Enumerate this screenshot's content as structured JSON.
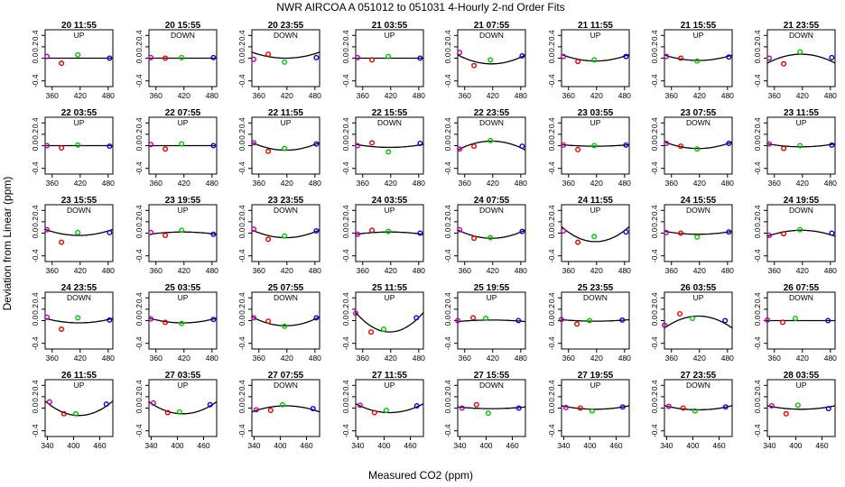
{
  "title": "NWR   AIRCOA A    051012 to 051031   4-Hourly 2-nd Order Fits",
  "xlabel": "Measured CO2 (ppm)",
  "ylabel": "Deviation from Linear (ppm)",
  "colors": {
    "low": "#e00000",
    "mid": "#00c000",
    "high": "#0000e0",
    "start": "#b000b0",
    "line": "#000000"
  },
  "chart_data": {
    "type": "scatter",
    "title": "NWR   AIRCOA A    051012 to 051031   4-Hourly 2-nd Order Fits",
    "xlabel": "Measured CO2 (ppm)",
    "ylabel": "Deviation from Linear (ppm)",
    "ylim": [
      -0.5,
      0.5
    ],
    "yticks": [
      "-0.4",
      "0.0",
      "0.2",
      "0.4"
    ],
    "rows": [
      {
        "xlim": [
          345,
          490
        ],
        "xticks": [
          "360",
          "420",
          "480"
        ]
      },
      {
        "xlim": [
          345,
          490
        ],
        "xticks": [
          "360",
          "420",
          "480"
        ]
      },
      {
        "xlim": [
          345,
          490
        ],
        "xticks": [
          "360",
          "420",
          "480"
        ]
      },
      {
        "xlim": [
          345,
          490
        ],
        "xticks": [
          "360",
          "420",
          "480"
        ]
      },
      {
        "xlim": [
          335,
          490
        ],
        "xticks": [
          "340",
          "400",
          "460"
        ]
      }
    ],
    "panels": [
      {
        "time": "20 11:55",
        "dir": "UP",
        "pts": [
          [
            349,
            0.03
          ],
          [
            380,
            -0.09
          ],
          [
            415,
            0.06
          ],
          [
            483,
            0.0
          ]
        ],
        "fit": [
          0,
          0,
          0
        ]
      },
      {
        "time": "20 15:55",
        "dir": "DOWN",
        "pts": [
          [
            349,
            0.01
          ],
          [
            380,
            0.0
          ],
          [
            415,
            0.01
          ],
          [
            483,
            0.01
          ]
        ],
        "fit": [
          0,
          0,
          0
        ]
      },
      {
        "time": "20 23:55",
        "dir": "DOWN",
        "pts": [
          [
            349,
            -0.02
          ],
          [
            380,
            0.07
          ],
          [
            415,
            -0.07
          ],
          [
            483,
            0.01
          ]
        ],
        "fit": [
          0.0,
          2e-05,
          0
        ]
      },
      {
        "time": "21 03:55",
        "dir": "UP",
        "pts": [
          [
            349,
            0.01
          ],
          [
            380,
            -0.03
          ],
          [
            415,
            0.03
          ],
          [
            483,
            0.0
          ]
        ],
        "fit": [
          0,
          0,
          0
        ]
      },
      {
        "time": "21 07:55",
        "dir": "DOWN",
        "pts": [
          [
            349,
            0.1
          ],
          [
            380,
            -0.13
          ],
          [
            415,
            -0.03
          ],
          [
            483,
            0.04
          ]
        ],
        "fit": [
          -0.1,
          3e-05,
          0
        ]
      },
      {
        "time": "21 11:55",
        "dir": "UP",
        "pts": [
          [
            349,
            0.03
          ],
          [
            380,
            -0.06
          ],
          [
            415,
            -0.03
          ],
          [
            483,
            0.03
          ]
        ],
        "fit": [
          -0.05,
          2.2e-05,
          0
        ]
      },
      {
        "time": "21 15:55",
        "dir": "UP",
        "pts": [
          [
            349,
            0.03
          ],
          [
            380,
            0.0
          ],
          [
            415,
            -0.05
          ],
          [
            483,
            0.02
          ]
        ],
        "fit": [
          -0.04,
          1.8e-05,
          0
        ]
      },
      {
        "time": "21 23:55",
        "dir": "DOWN",
        "pts": [
          [
            349,
            0.0
          ],
          [
            380,
            -0.1
          ],
          [
            415,
            0.11
          ],
          [
            483,
            0.01
          ]
        ],
        "fit": [
          0.07,
          -3e-05,
          0
        ]
      },
      {
        "time": "22 03:55",
        "dir": "UP",
        "pts": [
          [
            349,
            0.0
          ],
          [
            380,
            -0.04
          ],
          [
            415,
            0.01
          ],
          [
            483,
            -0.01
          ]
        ],
        "fit": [
          0,
          0,
          0
        ]
      },
      {
        "time": "22 07:55",
        "dir": "UP",
        "pts": [
          [
            349,
            0.02
          ],
          [
            380,
            -0.06
          ],
          [
            415,
            0.03
          ],
          [
            483,
            0.0
          ]
        ],
        "fit": [
          0,
          0,
          0
        ]
      },
      {
        "time": "22 11:55",
        "dir": "UP",
        "pts": [
          [
            349,
            0.05
          ],
          [
            380,
            -0.1
          ],
          [
            415,
            -0.05
          ],
          [
            483,
            0.03
          ]
        ],
        "fit": [
          -0.08,
          2.6e-05,
          0
        ]
      },
      {
        "time": "22 15:55",
        "dir": "DOWN",
        "pts": [
          [
            349,
            0.0
          ],
          [
            380,
            0.05
          ],
          [
            415,
            -0.11
          ],
          [
            483,
            0.04
          ]
        ],
        "fit": [
          -0.03,
          1e-05,
          0
        ]
      },
      {
        "time": "22 23:55",
        "dir": "DOWN",
        "pts": [
          [
            349,
            -0.06
          ],
          [
            380,
            -0.01
          ],
          [
            415,
            0.09
          ],
          [
            483,
            -0.01
          ]
        ],
        "fit": [
          0.08,
          -3e-05,
          0
        ]
      },
      {
        "time": "23 03:55",
        "dir": "UP",
        "pts": [
          [
            349,
            0.01
          ],
          [
            380,
            -0.07
          ],
          [
            415,
            0.0
          ],
          [
            483,
            0.01
          ]
        ],
        "fit": [
          -0.01,
          5e-06,
          0
        ]
      },
      {
        "time": "23 07:55",
        "dir": "DOWN",
        "pts": [
          [
            349,
            0.04
          ],
          [
            380,
            -0.01
          ],
          [
            415,
            -0.06
          ],
          [
            483,
            0.04
          ]
        ],
        "fit": [
          -0.05,
          2.2e-05,
          0
        ]
      },
      {
        "time": "23 11:55",
        "dir": "UP",
        "pts": [
          [
            349,
            0.03
          ],
          [
            380,
            -0.05
          ],
          [
            415,
            0.0
          ],
          [
            483,
            0.01
          ]
        ],
        "fit": [
          -0.02,
          1e-05,
          0
        ]
      },
      {
        "time": "23 15:55",
        "dir": "DOWN",
        "pts": [
          [
            349,
            0.06
          ],
          [
            380,
            -0.16
          ],
          [
            415,
            0.01
          ],
          [
            483,
            0.01
          ]
        ],
        "fit": [
          -0.04,
          2e-05,
          0
        ]
      },
      {
        "time": "23 19:55",
        "dir": "UP",
        "pts": [
          [
            349,
            0.01
          ],
          [
            380,
            -0.04
          ],
          [
            415,
            0.05
          ],
          [
            483,
            -0.02
          ]
        ],
        "fit": [
          0.02,
          -8e-06,
          0
        ]
      },
      {
        "time": "23 23:55",
        "dir": "DOWN",
        "pts": [
          [
            349,
            0.07
          ],
          [
            380,
            -0.11
          ],
          [
            415,
            -0.05
          ],
          [
            483,
            0.04
          ]
        ],
        "fit": [
          -0.08,
          2.6e-05,
          0
        ]
      },
      {
        "time": "24 03:55",
        "dir": "UP",
        "pts": [
          [
            349,
            -0.02
          ],
          [
            380,
            0.05
          ],
          [
            415,
            0.03
          ],
          [
            483,
            0.0
          ]
        ],
        "fit": [
          0.02,
          -8e-06,
          0
        ]
      },
      {
        "time": "24 07:55",
        "dir": "DOWN",
        "pts": [
          [
            349,
            0.06
          ],
          [
            380,
            -0.09
          ],
          [
            415,
            -0.08
          ],
          [
            483,
            0.03
          ]
        ],
        "fit": [
          -0.09,
          2.8e-05,
          0
        ]
      },
      {
        "time": "24 11:55",
        "dir": "UP",
        "pts": [
          [
            349,
            0.04
          ],
          [
            380,
            -0.16
          ],
          [
            415,
            -0.06
          ],
          [
            483,
            0.02
          ]
        ],
        "fit": [
          -0.15,
          5e-05,
          0
        ]
      },
      {
        "time": "24 15:55",
        "dir": "DOWN",
        "pts": [
          [
            349,
            0.01
          ],
          [
            380,
            0.0
          ],
          [
            415,
            -0.07
          ],
          [
            483,
            0.02
          ]
        ],
        "fit": [
          -0.02,
          1e-05,
          0
        ]
      },
      {
        "time": "24 19:55",
        "dir": "DOWN",
        "pts": [
          [
            349,
            -0.04
          ],
          [
            380,
            -0.01
          ],
          [
            415,
            0.06
          ],
          [
            483,
            0.0
          ]
        ],
        "fit": [
          0.05,
          -2e-05,
          0
        ]
      },
      {
        "time": "24 23:55",
        "dir": "DOWN",
        "pts": [
          [
            349,
            0.06
          ],
          [
            380,
            -0.15
          ],
          [
            415,
            0.05
          ],
          [
            483,
            0.01
          ]
        ],
        "fit": [
          -0.04,
          1.5e-05,
          0
        ]
      },
      {
        "time": "25 03:55",
        "dir": "UP",
        "pts": [
          [
            349,
            0.03
          ],
          [
            380,
            -0.03
          ],
          [
            415,
            -0.05
          ],
          [
            483,
            0.02
          ]
        ],
        "fit": [
          -0.04,
          1.6e-05,
          0
        ]
      },
      {
        "time": "25 07:55",
        "dir": "DOWN",
        "pts": [
          [
            349,
            0.05
          ],
          [
            380,
            -0.01
          ],
          [
            415,
            -0.1
          ],
          [
            483,
            0.05
          ]
        ],
        "fit": [
          -0.09,
          3e-05,
          0
        ]
      },
      {
        "time": "25 11:55",
        "dir": "UP",
        "pts": [
          [
            345,
            0.13
          ],
          [
            378,
            -0.2
          ],
          [
            405,
            -0.15
          ],
          [
            475,
            0.05
          ]
        ],
        "fit": [
          -0.2,
          6.5e-05,
          0
        ]
      },
      {
        "time": "25 19:55",
        "dir": "UP",
        "pts": [
          [
            345,
            0.0
          ],
          [
            378,
            0.05
          ],
          [
            405,
            0.04
          ],
          [
            475,
            0.0
          ]
        ],
        "fit": [
          0.01,
          -5e-06,
          0
        ]
      },
      {
        "time": "25 23:55",
        "dir": "DOWN",
        "pts": [
          [
            345,
            0.02
          ],
          [
            378,
            -0.06
          ],
          [
            405,
            0.0
          ],
          [
            475,
            0.01
          ]
        ],
        "fit": [
          -0.01,
          5e-06,
          0
        ]
      },
      {
        "time": "26 03:55",
        "dir": "UP",
        "pts": [
          [
            345,
            -0.08
          ],
          [
            378,
            0.12
          ],
          [
            405,
            0.04
          ],
          [
            475,
            0.0
          ]
        ],
        "fit": [
          0.08,
          -4e-05,
          0
        ]
      },
      {
        "time": "26 07:55",
        "dir": "DOWN",
        "pts": [
          [
            345,
            0.01
          ],
          [
            378,
            -0.03
          ],
          [
            405,
            0.04
          ],
          [
            475,
            0.0
          ]
        ],
        "fit": [
          0,
          0,
          0
        ]
      },
      {
        "time": "26 11:55",
        "dir": "UP",
        "pts": [
          [
            345,
            0.11
          ],
          [
            378,
            -0.1
          ],
          [
            405,
            -0.1
          ],
          [
            475,
            0.07
          ]
        ],
        "fit": [
          -0.13,
          4.2e-05,
          0
        ]
      },
      {
        "time": "27 03:55",
        "dir": "UP",
        "pts": [
          [
            345,
            0.09
          ],
          [
            378,
            -0.08
          ],
          [
            405,
            -0.07
          ],
          [
            475,
            0.06
          ]
        ],
        "fit": [
          -0.1,
          3.5e-05,
          0
        ]
      },
      {
        "time": "27 07:55",
        "dir": "DOWN",
        "pts": [
          [
            345,
            -0.03
          ],
          [
            378,
            -0.04
          ],
          [
            405,
            0.06
          ],
          [
            475,
            -0.01
          ]
        ],
        "fit": [
          0.04,
          -1.8e-05,
          0
        ]
      },
      {
        "time": "27 11:55",
        "dir": "UP",
        "pts": [
          [
            345,
            0.05
          ],
          [
            378,
            -0.08
          ],
          [
            405,
            -0.04
          ],
          [
            475,
            0.04
          ]
        ],
        "fit": [
          -0.08,
          2.6e-05,
          0
        ]
      },
      {
        "time": "27 15:55",
        "dir": "DOWN",
        "pts": [
          [
            345,
            0.0
          ],
          [
            378,
            0.06
          ],
          [
            405,
            -0.09
          ],
          [
            475,
            0.0
          ]
        ],
        "fit": [
          -0.01,
          5e-06,
          0
        ]
      },
      {
        "time": "27 19:55",
        "dir": "UP",
        "pts": [
          [
            345,
            0.01
          ],
          [
            378,
            0.0
          ],
          [
            405,
            -0.05
          ],
          [
            475,
            0.02
          ]
        ],
        "fit": [
          -0.02,
          1e-05,
          0
        ]
      },
      {
        "time": "27 23:55",
        "dir": "DOWN",
        "pts": [
          [
            345,
            0.03
          ],
          [
            378,
            0.0
          ],
          [
            405,
            -0.05
          ],
          [
            475,
            0.02
          ]
        ],
        "fit": [
          -0.03,
          1.2e-05,
          0
        ]
      },
      {
        "time": "28 03:55",
        "dir": "UP",
        "pts": [
          [
            345,
            0.04
          ],
          [
            378,
            -0.1
          ],
          [
            405,
            0.05
          ],
          [
            475,
            -0.01
          ]
        ],
        "fit": [
          -0.02,
          1e-05,
          0
        ]
      }
    ]
  }
}
